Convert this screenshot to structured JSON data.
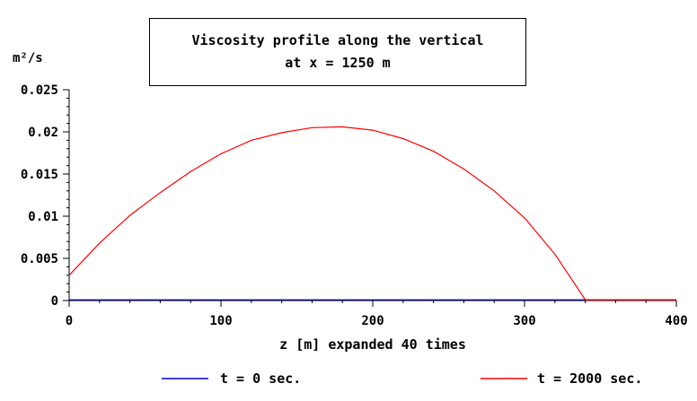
{
  "chart_data": {
    "type": "line",
    "title": [
      "Viscosity profile along the vertical",
      "at x = 1250 m"
    ],
    "ylabel": "m²/s",
    "xlabel": "z [m] expanded 40 times",
    "xlim": [
      0,
      400
    ],
    "ylim": [
      0,
      0.025
    ],
    "x_ticks": [
      0,
      100,
      200,
      300,
      400
    ],
    "x_tick_labels": [
      "0",
      "100",
      "200",
      "300",
      "400"
    ],
    "y_ticks": [
      0,
      0.005,
      0.01,
      0.015,
      0.02,
      0.025
    ],
    "y_tick_labels": [
      "0",
      "0.005",
      "0.01",
      "0.015",
      "0.02",
      "0.025"
    ],
    "grid": false,
    "legend_position": "bottom",
    "series": [
      {
        "name": "t = 0 sec.",
        "color": "#0000cc",
        "x": [
          0,
          340,
          400
        ],
        "y": [
          8e-05,
          8e-05,
          8e-05
        ]
      },
      {
        "name": "t = 2000 sec.",
        "color": "#ff0000",
        "x": [
          0,
          20,
          40,
          60,
          80,
          100,
          120,
          140,
          160,
          180,
          200,
          220,
          240,
          260,
          280,
          300,
          320,
          340,
          360,
          380,
          400
        ],
        "y": [
          0.003,
          0.0068,
          0.0101,
          0.0128,
          0.0153,
          0.0174,
          0.019,
          0.0199,
          0.0205,
          0.0206,
          0.0202,
          0.0192,
          0.0177,
          0.0156,
          0.013,
          0.0098,
          0.0055,
          0.0001,
          0.0001,
          0.0001,
          0.0001
        ]
      }
    ]
  }
}
